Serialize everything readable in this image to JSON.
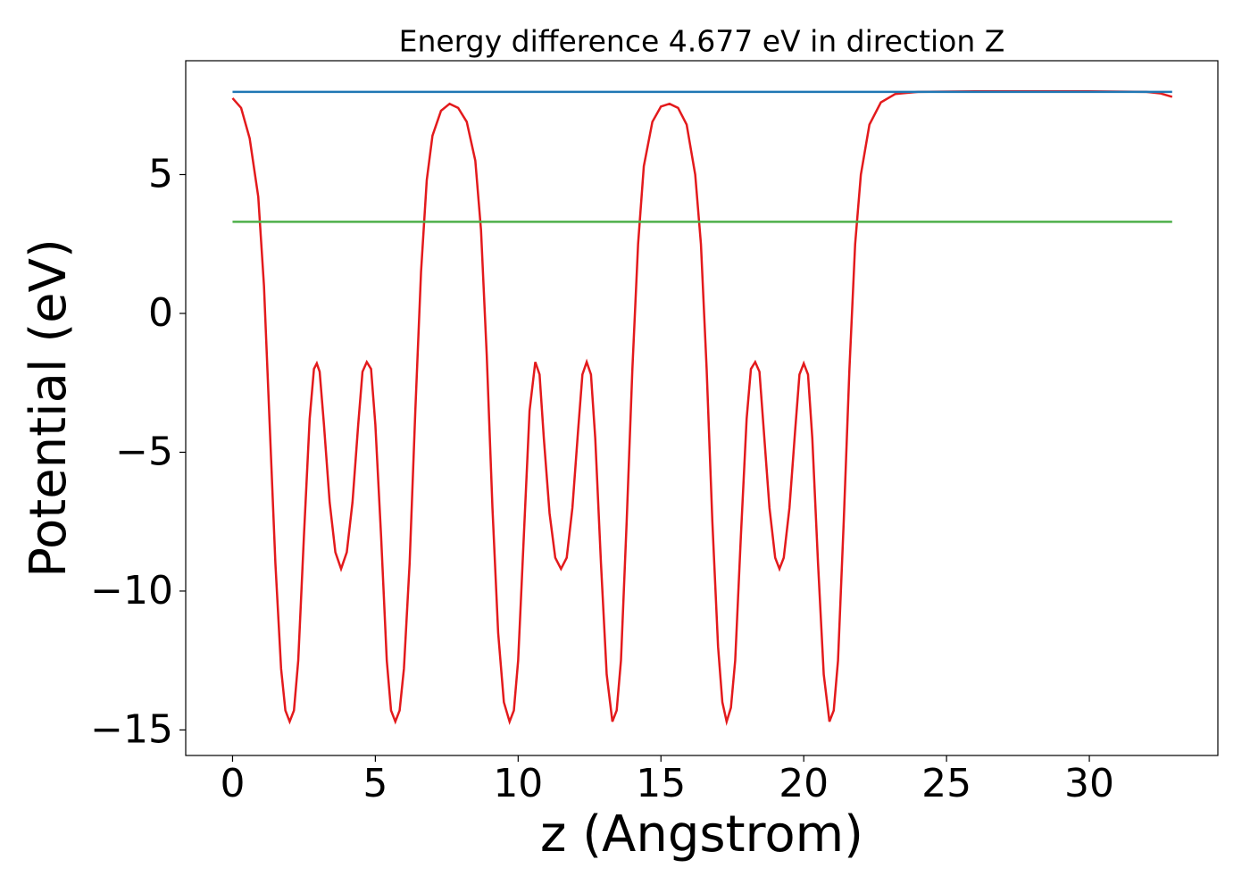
{
  "chart_data": {
    "type": "line",
    "title": "Energy difference 4.677 eV in direction Z",
    "xlabel": "z (Angstrom)",
    "ylabel": "Potential (eV)",
    "xlim": [
      -1.64,
      34.5
    ],
    "ylim": [
      -15.92,
      9.1
    ],
    "xticks": [
      0,
      5,
      10,
      15,
      20,
      25,
      30
    ],
    "yticks": [
      {
        "value": -15,
        "label": "−15"
      },
      {
        "value": -10,
        "label": "−10"
      },
      {
        "value": -5,
        "label": "−5"
      },
      0,
      5
    ],
    "grid": false,
    "series": [
      {
        "color": "#e31a1c",
        "x": [
          0,
          0.3,
          0.6,
          0.9,
          1.1,
          1.3,
          1.5,
          1.7,
          1.85,
          2.0,
          2.15,
          2.3,
          2.5,
          2.7,
          2.85,
          2.95,
          3.05,
          3.2,
          3.4,
          3.6,
          3.8,
          4.0,
          4.2,
          4.4,
          4.55,
          4.7,
          4.85,
          5.0,
          5.2,
          5.4,
          5.55,
          5.7,
          5.85,
          6.0,
          6.2,
          6.4,
          6.6,
          6.8,
          7.0,
          7.3,
          7.6,
          7.9,
          8.2,
          8.5,
          8.7,
          8.9,
          9.1,
          9.3,
          9.5,
          9.7,
          9.85,
          10.0,
          10.2,
          10.4,
          10.6,
          10.75,
          10.9,
          11.1,
          11.3,
          11.5,
          11.7,
          11.9,
          12.1,
          12.25,
          12.4,
          12.55,
          12.7,
          12.9,
          13.1,
          13.3,
          13.45,
          13.6,
          13.8,
          14.0,
          14.2,
          14.4,
          14.7,
          15.0,
          15.3,
          15.6,
          15.9,
          16.2,
          16.4,
          16.6,
          16.8,
          17.0,
          17.15,
          17.3,
          17.45,
          17.6,
          17.8,
          18.0,
          18.15,
          18.3,
          18.45,
          18.6,
          18.8,
          19.0,
          19.15,
          19.3,
          19.5,
          19.7,
          19.85,
          20.0,
          20.15,
          20.3,
          20.5,
          20.7,
          20.9,
          21.05,
          21.2,
          21.4,
          21.6,
          21.8,
          22.0,
          22.3,
          22.7,
          23.2,
          24,
          26,
          28,
          30,
          32,
          32.5,
          32.9
        ],
        "values": [
          7.75,
          7.4,
          6.3,
          4.2,
          1.0,
          -4,
          -9,
          -12.8,
          -14.3,
          -14.7,
          -14.3,
          -12.5,
          -8,
          -3.8,
          -2.0,
          -1.8,
          -2.1,
          -4,
          -6.8,
          -8.6,
          -9.2,
          -8.6,
          -6.8,
          -4,
          -2.1,
          -1.75,
          -2.0,
          -4,
          -8,
          -12.5,
          -14.3,
          -14.7,
          -14.3,
          -12.8,
          -9,
          -3.5,
          1.5,
          4.8,
          6.4,
          7.3,
          7.55,
          7.4,
          6.9,
          5.5,
          3.0,
          -1.5,
          -7,
          -11.5,
          -14.0,
          -14.7,
          -14.3,
          -12.5,
          -8,
          -3.5,
          -1.75,
          -2.2,
          -4.5,
          -7.2,
          -8.8,
          -9.2,
          -8.8,
          -7,
          -4.2,
          -2.2,
          -1.75,
          -2.2,
          -4.5,
          -9,
          -13,
          -14.7,
          -14.3,
          -12.5,
          -7.5,
          -2,
          2.5,
          5.3,
          6.9,
          7.45,
          7.55,
          7.4,
          6.8,
          5.0,
          2.5,
          -2,
          -7.5,
          -12,
          -14.0,
          -14.7,
          -14.2,
          -12.5,
          -8,
          -3.8,
          -2.0,
          -1.75,
          -2.1,
          -4.2,
          -7,
          -8.8,
          -9.2,
          -8.8,
          -7,
          -4.2,
          -2.2,
          -1.8,
          -2.2,
          -4.5,
          -9,
          -13,
          -14.7,
          -14.3,
          -12.5,
          -7.5,
          -2,
          2.5,
          5.0,
          6.8,
          7.6,
          7.9,
          7.98,
          8.0,
          8.0,
          8.0,
          7.98,
          7.92,
          7.8
        ]
      },
      {
        "color": "#1f77b4",
        "x": [
          0,
          32.9
        ],
        "values": [
          7.98,
          7.98
        ]
      },
      {
        "color": "#4daf4a",
        "x": [
          0,
          32.9
        ],
        "values": [
          3.3,
          3.3
        ]
      }
    ]
  }
}
